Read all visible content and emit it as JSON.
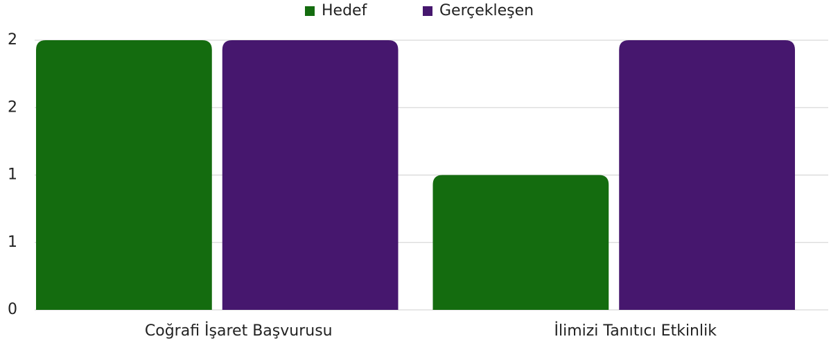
{
  "chart_data": {
    "type": "bar",
    "categories": [
      "Coğrafi İşaret Başvurusu",
      "İlimizi Tanıtıcı Etkinlik"
    ],
    "series": [
      {
        "name": "Hedef",
        "color": "#146c0f",
        "values": [
          2,
          1
        ]
      },
      {
        "name": "Gerçekleşen",
        "color": "#46176e",
        "values": [
          2,
          2
        ]
      }
    ],
    "ylim": [
      0,
      2
    ],
    "yticks": [
      0,
      {
        "value": 0.5,
        "label": "1"
      },
      1,
      {
        "value": 1.5,
        "label": "2"
      },
      2
    ],
    "grid": true,
    "legend": "top"
  }
}
